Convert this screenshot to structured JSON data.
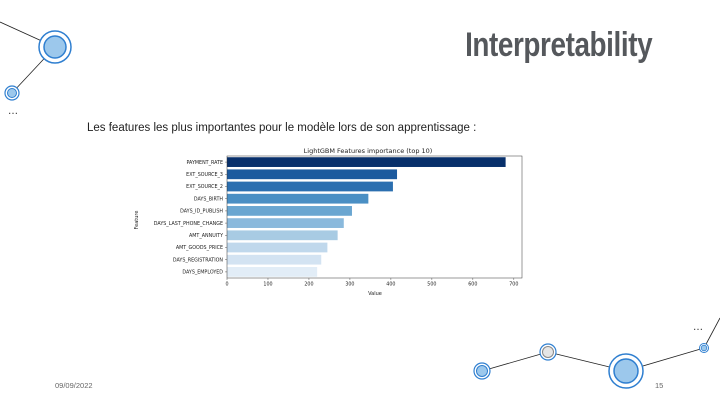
{
  "slide": {
    "title": "Interpretability",
    "subtitle": "Les features les plus importantes pour le modèle lors de son apprentissage :",
    "date": "09/09/2022",
    "page_number": "15",
    "ellipsis_top": "…",
    "ellipsis_bottom": "…"
  },
  "colors": {
    "title": "#55585c",
    "deco_line": "#222222",
    "deco_fill": "#9cc8ec",
    "deco_ring": "#2f7fd0"
  },
  "chart_data": {
    "type": "bar",
    "orientation": "horizontal",
    "title": "LightGBM Features importance (top 10)",
    "xlabel": "Value",
    "ylabel": "Feature",
    "xlim": [
      0,
      720
    ],
    "xticks": [
      0,
      100,
      200,
      300,
      400,
      500,
      600,
      700
    ],
    "categories": [
      "PAYMENT_RATE",
      "EXT_SOURCE_3",
      "EXT_SOURCE_2",
      "DAYS_BIRTH",
      "DAYS_ID_PUBLISH",
      "DAYS_LAST_PHONE_CHANGE",
      "AMT_ANNUITY",
      "AMT_GOODS_PRICE",
      "DAYS_REGISTRATION",
      "DAYS_EMPLOYED"
    ],
    "values": [
      680,
      415,
      405,
      345,
      305,
      285,
      270,
      245,
      230,
      220
    ],
    "colors": [
      "#08306b",
      "#1c5a9e",
      "#2b6fb0",
      "#4a8fc4",
      "#6aa6d1",
      "#8ab9dc",
      "#a8cbe3",
      "#c0d8ec",
      "#d3e3f2",
      "#e2edf7"
    ],
    "grid": false,
    "legend": "none"
  }
}
